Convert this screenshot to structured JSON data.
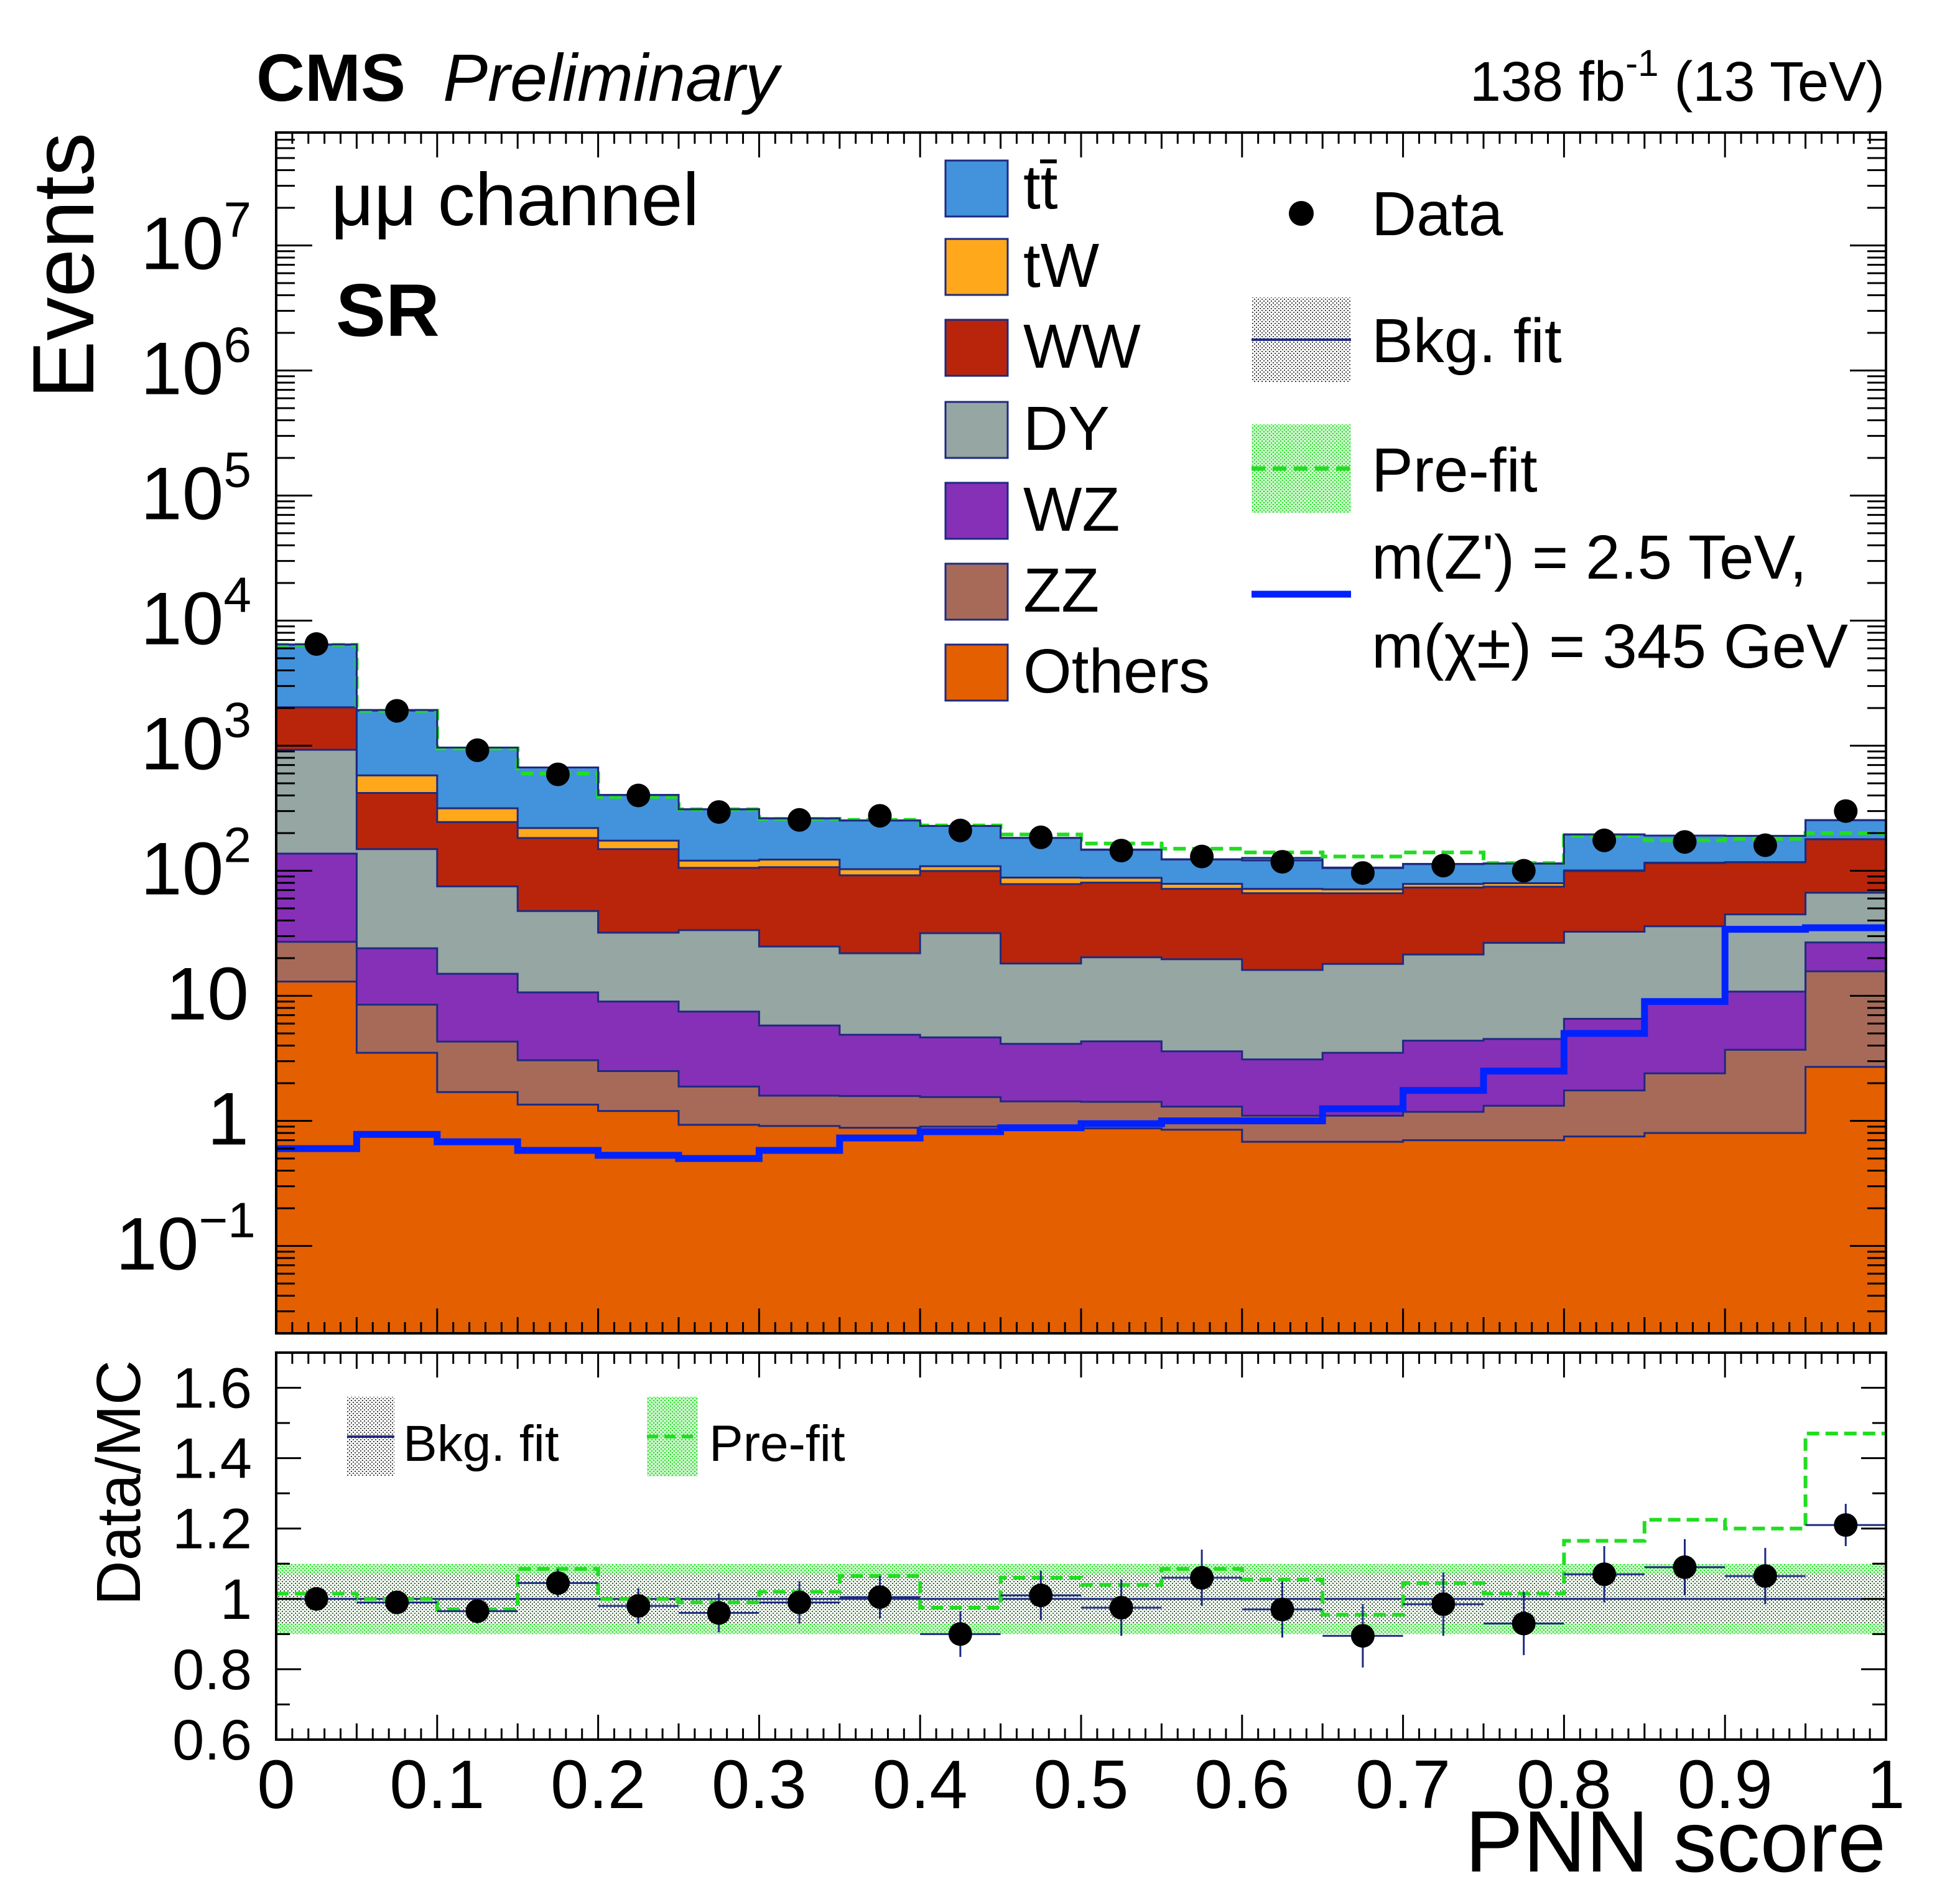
{
  "header": {
    "experiment": "CMS",
    "status": "Preliminary",
    "lumi_base": "138 fb",
    "lumi_exp": "-1",
    "energy": " (13 TeV)"
  },
  "annotations": {
    "channel": "μμ channel",
    "region": "SR"
  },
  "legend": {
    "tt": "tt̄",
    "tW": "tW",
    "WW": "WW",
    "DY": "DY",
    "WZ": "WZ",
    "ZZ": "ZZ",
    "Others": "Others",
    "data": "Data",
    "bkgfit": "Bkg. fit",
    "prefit": "Pre-fit",
    "signal_line1": "m(Z') = 2.5 TeV,",
    "signal_line2": "m(χ±) = 345 GeV"
  },
  "ratio_legend": {
    "bkgfit": "Bkg. fit",
    "prefit": "Pre-fit"
  },
  "colors": {
    "tt": "#4392dc",
    "tW": "#ffa81c",
    "WW": "#b9250a",
    "DY": "#95a6a3",
    "WZ": "#8630b7",
    "ZZ": "#a76a59",
    "Others": "#e35f00",
    "edge": "#1e2a80",
    "signal": "#0022ff",
    "prefit": "#22dd22",
    "data": "#000000"
  },
  "chart_data": [
    {
      "type": "bar",
      "stacked": true,
      "log_y": true,
      "ylabel": "Events",
      "xlabel": "PNN score",
      "xlim": [
        0,
        1
      ],
      "ylim": [
        0.02,
        80000000
      ],
      "y_ticks": [
        {
          "value": 0.1,
          "base": "10",
          "exp": "−1"
        },
        {
          "value": 1,
          "base": "1",
          "exp": ""
        },
        {
          "value": 10,
          "base": "10",
          "exp": ""
        },
        {
          "value": 100,
          "base": "10",
          "exp": "2"
        },
        {
          "value": 1000,
          "base": "10",
          "exp": "3"
        },
        {
          "value": 10000,
          "base": "10",
          "exp": "4"
        },
        {
          "value": 100000,
          "base": "10",
          "exp": "5"
        },
        {
          "value": 1000000,
          "base": "10",
          "exp": "6"
        },
        {
          "value": 10000000,
          "base": "10",
          "exp": "7"
        }
      ],
      "bin_edges": [
        0,
        0.05,
        0.1,
        0.15,
        0.2,
        0.25,
        0.3,
        0.35,
        0.4,
        0.45,
        0.5,
        0.55,
        0.6,
        0.65,
        0.7,
        0.75,
        0.8,
        0.85,
        0.9,
        0.95,
        1.0
      ],
      "stack_order": [
        "Others",
        "ZZ",
        "WZ",
        "DY",
        "WW",
        "tW",
        "tt"
      ],
      "series": [
        {
          "name": "Others",
          "values": [
            13,
            3.5,
            1.7,
            1.35,
            1.2,
            0.93,
            0.91,
            0.88,
            0.9,
            0.88,
            0.87,
            0.85,
            0.68,
            0.68,
            0.7,
            0.7,
            0.75,
            0.8,
            0.8,
            2.7
          ]
        },
        {
          "name": "ZZ",
          "values": [
            14,
            5,
            2.6,
            1.7,
            1.3,
            0.95,
            0.68,
            0.7,
            0.65,
            0.55,
            0.55,
            0.45,
            0.42,
            0.42,
            0.48,
            0.62,
            1.0,
            1.6,
            2.9,
            13
          ]
        },
        {
          "name": "WZ",
          "values": [
            110,
            15.5,
            10.7,
            7.6,
            6.5,
            5.6,
            4.2,
            3.3,
            3.1,
            2.7,
            2.9,
            2.3,
            2.0,
            2.4,
            3.2,
            3.2,
            4.8,
            6.6,
            7.1,
            11
          ]
        },
        {
          "name": "DY",
          "values": [
            790,
            125,
            60,
            37,
            23,
            26,
            19,
            17,
            27,
            14,
            16,
            16,
            13,
            14.5,
            17,
            22,
            26,
            27,
            34,
            40
          ]
        },
        {
          "name": "WW",
          "values": [
            1100,
            270,
            170,
            135,
            117,
            72,
            82,
            70,
            68,
            60,
            60,
            52,
            50,
            48,
            52,
            48,
            67,
            79,
            72,
            112
          ]
        },
        {
          "name": "tW",
          "values": [
            0,
            160,
            71,
            37,
            25,
            15,
            16,
            11,
            9,
            10,
            7.5,
            7,
            5.5,
            5,
            5,
            5,
            1,
            1,
            0.5,
            0
          ]
        },
        {
          "name": "tt",
          "values": [
            4400,
            1330,
            650,
            450,
            230,
            190,
            140,
            150,
            120,
            95,
            60,
            45,
            55,
            35,
            35,
            35,
            95,
            75,
            73,
            75
          ]
        }
      ],
      "bkg_fit_total": [
        6450,
        1930,
        966,
        670,
        403,
        310,
        262,
        252,
        228,
        183,
        147,
        123,
        121,
        105,
        113,
        114,
        195,
        191,
        190,
        254
      ],
      "prefit_total": [
        6400,
        1900,
        950,
        600,
        390,
        310,
        260,
        255,
        230,
        195,
        165,
        150,
        140,
        130,
        140,
        115,
        190,
        175,
        180,
        200
      ],
      "signal": {
        "name": "m(Z') = 2.5 TeV, m(χ±) = 345 GeV",
        "values": [
          0.6,
          0.78,
          0.68,
          0.58,
          0.53,
          0.5,
          0.58,
          0.73,
          0.82,
          0.88,
          0.95,
          1.0,
          1.0,
          1.25,
          1.75,
          2.5,
          5,
          9,
          34,
          35
        ]
      },
      "data": {
        "x": [
          0.025,
          0.075,
          0.125,
          0.175,
          0.225,
          0.275,
          0.325,
          0.375,
          0.425,
          0.475,
          0.525,
          0.575,
          0.625,
          0.675,
          0.725,
          0.775,
          0.825,
          0.875,
          0.925,
          0.975
        ],
        "values": [
          6500,
          1900,
          920,
          590,
          400,
          295,
          255,
          275,
          210,
          185,
          145,
          130,
          118,
          96,
          110,
          100,
          175,
          170,
          160,
          300
        ]
      },
      "annotations": [
        "μμ channel",
        "SR"
      ]
    },
    {
      "type": "scatter",
      "ylabel": "Data/MC",
      "xlabel": "PNN score",
      "xlim": [
        0,
        1
      ],
      "ylim": [
        0.6,
        1.7
      ],
      "x_ticks": [
        "0",
        "0.1",
        "0.2",
        "0.3",
        "0.4",
        "0.5",
        "0.6",
        "0.7",
        "0.8",
        "0.9",
        "1"
      ],
      "y_ticks": [
        "0.6",
        "0.8",
        "1",
        "1.2",
        "1.4",
        "1.6"
      ],
      "bin_edges": [
        0,
        0.05,
        0.1,
        0.15,
        0.2,
        0.25,
        0.3,
        0.35,
        0.4,
        0.45,
        0.5,
        0.55,
        0.6,
        0.65,
        0.7,
        0.75,
        0.8,
        0.85,
        0.9,
        0.95,
        1.0
      ],
      "data_ratio": [
        1.0,
        0.99,
        0.965,
        1.045,
        0.98,
        0.96,
        0.99,
        1.005,
        0.9,
        1.01,
        0.975,
        1.06,
        0.97,
        0.895,
        0.985,
        0.93,
        1.07,
        1.09,
        1.065,
        1.21
      ],
      "data_err_up": [
        0.02,
        0.025,
        0.035,
        0.04,
        0.05,
        0.055,
        0.06,
        0.06,
        0.065,
        0.07,
        0.08,
        0.08,
        0.08,
        0.09,
        0.09,
        0.09,
        0.08,
        0.08,
        0.08,
        0.06
      ],
      "prefit_ratio": [
        1.015,
        1.0,
        0.97,
        1.085,
        1.0,
        0.99,
        1.02,
        1.065,
        0.975,
        1.06,
        1.04,
        1.085,
        1.055,
        0.955,
        1.045,
        1.015,
        1.165,
        1.225,
        1.2,
        1.47
      ],
      "bkgfit_band": 0.07,
      "prefit_band": 0.1
    }
  ]
}
